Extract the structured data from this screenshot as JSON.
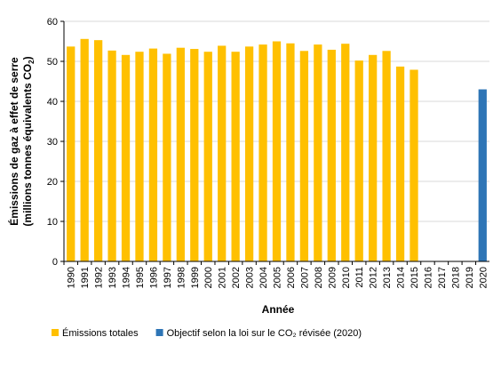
{
  "chart_data": {
    "type": "bar",
    "title": "",
    "xlabel": "Année",
    "ylabel_line1": "Émissions de gaz à effet de serre",
    "ylabel_line2": "(millions tonnes équivalents CO",
    "ylabel_sub": "2",
    "ylabel_close": ")",
    "ylim": [
      0,
      60
    ],
    "yticks": [
      0,
      10,
      20,
      30,
      40,
      50,
      60
    ],
    "grid": true,
    "legend_position": "bottom",
    "categories": [
      "1990",
      "1991",
      "1992",
      "1993",
      "1994",
      "1995",
      "1996",
      "1997",
      "1998",
      "1999",
      "2000",
      "2001",
      "2002",
      "2003",
      "2004",
      "2005",
      "2006",
      "2007",
      "2008",
      "2009",
      "2010",
      "2011",
      "2012",
      "2013",
      "2014",
      "2015",
      "2016",
      "2017",
      "2018",
      "2019",
      "2020"
    ],
    "series": [
      {
        "name": "Émissions totales",
        "color": "#FFC000",
        "values": [
          53.7,
          55.6,
          55.3,
          52.7,
          51.6,
          52.4,
          53.2,
          51.9,
          53.4,
          53.1,
          52.4,
          53.9,
          52.4,
          53.7,
          54.2,
          55.0,
          54.5,
          52.6,
          54.2,
          52.9,
          54.4,
          50.2,
          51.6,
          52.6,
          48.7,
          47.9,
          null,
          null,
          null,
          null,
          null
        ]
      },
      {
        "name": "Objectif selon la loi sur le CO₂ révisée (2020)",
        "color": "#2E75B6",
        "values": [
          null,
          null,
          null,
          null,
          null,
          null,
          null,
          null,
          null,
          null,
          null,
          null,
          null,
          null,
          null,
          null,
          null,
          null,
          null,
          null,
          null,
          null,
          null,
          null,
          null,
          null,
          null,
          null,
          null,
          null,
          43.0
        ]
      }
    ]
  }
}
